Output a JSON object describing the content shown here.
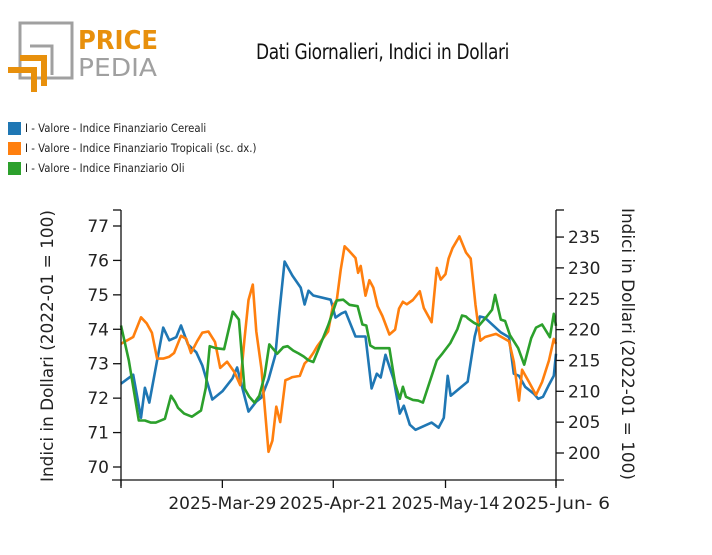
{
  "header": {
    "logo_text_top": "PRICE",
    "logo_text_bottom": "PEDIA",
    "title": "Dati Giornalieri, Indici in Dollari"
  },
  "colors": {
    "series_0": "#1f77b4",
    "series_1": "#ff7f0e",
    "series_2": "#2ca02c",
    "logo_orange": "#e8900c",
    "logo_gray": "#a0a0a0"
  },
  "chart_data": {
    "type": "line",
    "title": "Dati Giornalieri, Indici in Dollari",
    "xlabel": "",
    "ylabel": "Indici in Dollari (2022-01 = 100)",
    "ylabel_right": "Indici in Dollari (2022-01 = 100)",
    "ylim": [
      69.6,
      77.5
    ],
    "ylim_right": [
      196.0,
      238.5
    ],
    "yticks": [
      "70",
      "71",
      "72",
      "73",
      "74",
      "75",
      "76",
      "77"
    ],
    "yticks_right": [
      "200",
      "205",
      "210",
      "215",
      "220",
      "225",
      "230",
      "235"
    ],
    "x_range": [
      0,
      100
    ],
    "xtick_positions": [
      0,
      23.3,
      48.8,
      74.6,
      100
    ],
    "xticks": [
      "",
      "2025-Mar-29",
      "2025-Apr-21",
      "2025-May-14",
      "2025-Jun- 6"
    ],
    "grid": false,
    "legend_position": "top-left",
    "series": [
      {
        "name": "I - Valore - Indice Finanziario Cereali",
        "axis": "left",
        "x": [
          0,
          2.8,
          4.6,
          5.5,
          6.5,
          9.7,
          11.1,
          12.7,
          13.8,
          15.4,
          17.3,
          18.7,
          21.0,
          23.3,
          25.6,
          26.7,
          29.3,
          31.1,
          32.3,
          33.9,
          35.5,
          36.4,
          37.6,
          39.4,
          41.3,
          42.2,
          43.1,
          44.2,
          48.2,
          49.3,
          50.7,
          51.6,
          53.9,
          56.2,
          57.6,
          58.8,
          59.7,
          60.8,
          62.7,
          64.1,
          65.0,
          66.4,
          67.7,
          71.4,
          73.0,
          74.2,
          75.1,
          75.8,
          79.7,
          81.3,
          82.5,
          83.6,
          87.3,
          89.2,
          90.3,
          91.5,
          92.9,
          94.9,
          95.9,
          97.0,
          98.4,
          99.5,
          100
        ],
        "values": [
          72.42,
          72.68,
          71.43,
          72.3,
          71.87,
          74.05,
          73.68,
          73.77,
          74.11,
          73.56,
          73.33,
          72.95,
          71.96,
          72.2,
          72.57,
          72.89,
          71.61,
          71.9,
          72.02,
          72.54,
          73.26,
          74.48,
          75.97,
          75.56,
          75.21,
          74.72,
          75.12,
          74.98,
          74.86,
          74.34,
          74.46,
          74.51,
          73.79,
          73.79,
          72.28,
          72.71,
          72.6,
          73.26,
          72.54,
          71.55,
          71.78,
          71.23,
          71.08,
          71.29,
          71.14,
          71.43,
          72.65,
          72.07,
          72.48,
          73.79,
          74.37,
          74.34,
          73.91,
          73.77,
          72.71,
          72.65,
          72.33,
          72.13,
          71.98,
          72.04,
          72.39,
          72.65,
          73.29
        ]
      },
      {
        "name": "I - Valore - Indice Finanziario Tropicali (sc. dx.)",
        "axis": "right",
        "x": [
          0,
          2.8,
          4.6,
          5.9,
          7.1,
          8.3,
          9.7,
          11.1,
          12.2,
          13.8,
          15.0,
          16.1,
          17.5,
          18.7,
          20.1,
          21.6,
          22.8,
          24.4,
          26.1,
          27.4,
          28.4,
          29.3,
          30.3,
          31.1,
          32.3,
          33.9,
          34.8,
          35.7,
          36.6,
          37.8,
          38.5,
          39.4,
          41.1,
          42.2,
          43.3,
          44.2,
          45.1,
          47.6,
          48.7,
          49.6,
          50.5,
          51.4,
          52.5,
          53.9,
          54.5,
          55.1,
          56.2,
          57.1,
          58.0,
          59.0,
          60.1,
          61.7,
          63.0,
          63.9,
          64.8,
          65.7,
          67.1,
          68.7,
          69.6,
          71.4,
          72.6,
          73.5,
          74.6,
          75.3,
          76.2,
          77.8,
          79.3,
          80.4,
          81.5,
          82.6,
          83.7,
          86.2,
          89.2,
          90.3,
          91.5,
          92.2,
          93.8,
          95.4,
          96.8,
          98.4,
          99.5,
          100
        ],
        "values": [
          217.7,
          218.8,
          222.0,
          221.0,
          219.5,
          215.3,
          215.3,
          215.6,
          216.2,
          219.0,
          218.5,
          216.2,
          218.1,
          219.5,
          219.7,
          218.0,
          213.8,
          214.8,
          213.1,
          211.0,
          218.5,
          224.8,
          227.3,
          219.7,
          213.6,
          200.2,
          202.0,
          207.5,
          205.0,
          211.8,
          212.0,
          212.3,
          212.5,
          214.5,
          215.3,
          216.2,
          217.3,
          219.7,
          223.8,
          224.8,
          229.7,
          233.5,
          232.7,
          231.6,
          229.2,
          230.3,
          225.5,
          228.0,
          226.8,
          223.8,
          222.2,
          219.2,
          220.0,
          223.4,
          224.5,
          224.1,
          224.8,
          226.2,
          223.5,
          221.2,
          230.0,
          228.1,
          229.0,
          231.5,
          233.2,
          235.1,
          232.5,
          231.5,
          224.0,
          218.2,
          218.8,
          219.3,
          218.1,
          214.8,
          208.5,
          213.5,
          211.5,
          209.4,
          211.5,
          215.0,
          218.5,
          217.7
        ]
      },
      {
        "name": "I - Valore - Indice Finanziario Oli",
        "axis": "left",
        "x": [
          0,
          1.8,
          4.1,
          5.5,
          6.9,
          8.0,
          10.1,
          11.5,
          12.4,
          13.1,
          14.5,
          16.3,
          18.4,
          19.5,
          20.4,
          21.8,
          23.7,
          25.7,
          27.1,
          28.4,
          29.5,
          30.7,
          31.8,
          33.0,
          34.1,
          35.9,
          37.3,
          38.3,
          39.6,
          40.8,
          42.0,
          43.1,
          44.2,
          47.6,
          49.6,
          51.1,
          52.5,
          54.4,
          55.5,
          56.4,
          57.3,
          58.4,
          60.1,
          61.7,
          63.0,
          64.1,
          64.8,
          65.5,
          67.1,
          68.3,
          69.4,
          72.6,
          73.9,
          75.7,
          77.3,
          78.4,
          79.3,
          79.8,
          81.1,
          82.3,
          84.1,
          85.3,
          86.0,
          87.3,
          88.3,
          89.4,
          91.3,
          92.7,
          94.3,
          95.4,
          96.8,
          98.6,
          99.5,
          100
        ],
        "values": [
          74.11,
          73.1,
          71.35,
          71.35,
          71.29,
          71.29,
          71.4,
          72.07,
          71.9,
          71.72,
          71.55,
          71.46,
          71.64,
          72.3,
          73.51,
          73.45,
          73.42,
          74.51,
          74.28,
          72.28,
          72.04,
          71.87,
          72.07,
          72.65,
          73.56,
          73.29,
          73.48,
          73.51,
          73.38,
          73.3,
          73.21,
          73.1,
          73.05,
          74.11,
          74.84,
          74.86,
          74.71,
          74.67,
          74.14,
          74.11,
          73.53,
          73.45,
          73.45,
          73.45,
          72.42,
          71.98,
          72.33,
          72.04,
          71.95,
          71.93,
          71.87,
          73.1,
          73.3,
          73.6,
          74.0,
          74.4,
          74.37,
          74.31,
          74.19,
          74.11,
          74.37,
          74.57,
          75.0,
          74.28,
          74.24,
          73.83,
          73.45,
          72.97,
          73.74,
          74.05,
          74.14,
          73.77,
          74.45,
          74.1
        ]
      }
    ]
  }
}
